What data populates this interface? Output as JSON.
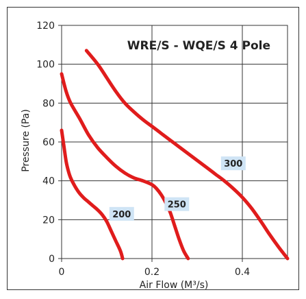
{
  "chart_data": {
    "type": "line",
    "title": "WRE/S - WQE/S 4 Pole",
    "xlabel": "Air Flow (M³/s)",
    "ylabel": "Pressure (Pa)",
    "xlim": [
      0,
      0.5
    ],
    "ylim": [
      0,
      120
    ],
    "x_ticks": [
      0,
      0.2,
      0.4
    ],
    "x_tick_labels": [
      "0",
      "0.2",
      "0.4"
    ],
    "y_ticks": [
      0,
      20,
      40,
      60,
      80,
      100,
      120
    ],
    "y_tick_labels": [
      "0",
      "20",
      "40",
      "60",
      "80",
      "100",
      "120"
    ],
    "grid": true,
    "line_color": "#e01c1c",
    "label_bg_color": "#cfe4f5",
    "series": [
      {
        "name": "200",
        "label_at": [
          0.133,
          23
        ],
        "points": [
          [
            0,
            66
          ],
          [
            0.005,
            58
          ],
          [
            0.01,
            50
          ],
          [
            0.015,
            45
          ],
          [
            0.02,
            41.5
          ],
          [
            0.03,
            37
          ],
          [
            0.04,
            33.5
          ],
          [
            0.05,
            31
          ],
          [
            0.06,
            29
          ],
          [
            0.07,
            27
          ],
          [
            0.08,
            25
          ],
          [
            0.09,
            22.5
          ],
          [
            0.1,
            19
          ],
          [
            0.11,
            14
          ],
          [
            0.12,
            9
          ],
          [
            0.13,
            4
          ],
          [
            0.135,
            0
          ]
        ]
      },
      {
        "name": "250",
        "label_at": [
          0.255,
          28
        ],
        "points": [
          [
            0,
            95
          ],
          [
            0.01,
            86
          ],
          [
            0.02,
            80
          ],
          [
            0.04,
            72
          ],
          [
            0.06,
            63.5
          ],
          [
            0.08,
            57
          ],
          [
            0.1,
            52
          ],
          [
            0.12,
            47.5
          ],
          [
            0.14,
            44
          ],
          [
            0.16,
            41.5
          ],
          [
            0.18,
            40
          ],
          [
            0.2,
            38
          ],
          [
            0.21,
            36
          ],
          [
            0.22,
            33
          ],
          [
            0.23,
            29
          ],
          [
            0.24,
            24
          ],
          [
            0.25,
            17
          ],
          [
            0.26,
            10
          ],
          [
            0.27,
            4
          ],
          [
            0.28,
            0
          ]
        ]
      },
      {
        "name": "300",
        "label_at": [
          0.38,
          49
        ],
        "points": [
          [
            0.055,
            107
          ],
          [
            0.08,
            100
          ],
          [
            0.1,
            93
          ],
          [
            0.12,
            86
          ],
          [
            0.14,
            80
          ],
          [
            0.16,
            75.5
          ],
          [
            0.18,
            71.5
          ],
          [
            0.2,
            68
          ],
          [
            0.22,
            64.5
          ],
          [
            0.24,
            61
          ],
          [
            0.26,
            57.5
          ],
          [
            0.28,
            54
          ],
          [
            0.3,
            50.5
          ],
          [
            0.32,
            47
          ],
          [
            0.34,
            43.5
          ],
          [
            0.36,
            40
          ],
          [
            0.38,
            36
          ],
          [
            0.4,
            31.5
          ],
          [
            0.42,
            26
          ],
          [
            0.44,
            19.5
          ],
          [
            0.46,
            12.5
          ],
          [
            0.48,
            6
          ],
          [
            0.5,
            0
          ]
        ]
      }
    ]
  }
}
